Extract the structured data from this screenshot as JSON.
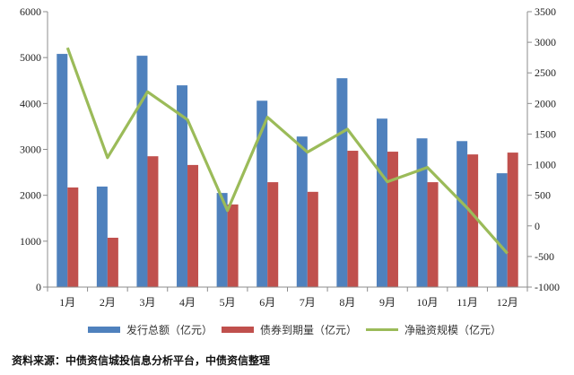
{
  "chart_data": {
    "type": "bar",
    "categories": [
      "1月",
      "2月",
      "3月",
      "4月",
      "5月",
      "6月",
      "7月",
      "8月",
      "9月",
      "10月",
      "11月",
      "12月"
    ],
    "series": [
      {
        "name": "发行总额（亿元）",
        "type": "bar",
        "axis": "left",
        "color": "#4F81BD",
        "values": [
          5080,
          2190,
          5040,
          4395,
          2050,
          4060,
          3280,
          4550,
          3670,
          3240,
          3180,
          2480
        ]
      },
      {
        "name": "债券到期量（亿元）",
        "type": "bar",
        "axis": "left",
        "color": "#C0504D",
        "values": [
          2170,
          1075,
          2850,
          2660,
          1800,
          2285,
          2075,
          2970,
          2950,
          2285,
          2890,
          2930
        ]
      },
      {
        "name": "净融资规模（亿元）",
        "type": "line",
        "axis": "right",
        "color": "#9BBB59",
        "values": [
          2910,
          1115,
          2190,
          1735,
          250,
          1775,
          1205,
          1580,
          720,
          955,
          290,
          -450
        ]
      }
    ],
    "left_axis": {
      "ylim": [
        0,
        6000
      ],
      "ticks": [
        0,
        1000,
        2000,
        3000,
        4000,
        5000,
        6000
      ]
    },
    "right_axis": {
      "ylim": [
        -1000,
        3500
      ],
      "ticks": [
        -1000,
        -500,
        0,
        500,
        1000,
        1500,
        2000,
        2500,
        3000,
        3500
      ]
    },
    "title": "",
    "xlabel": "",
    "ylabel": "",
    "grid": false,
    "legend_position": "bottom"
  },
  "legend": {
    "items": [
      {
        "label": "发行总额（亿元）",
        "color": "#4F81BD",
        "kind": "bar"
      },
      {
        "label": "债券到期量（亿元）",
        "color": "#C0504D",
        "kind": "bar"
      },
      {
        "label": "净融资规模（亿元）",
        "color": "#9BBB59",
        "kind": "line"
      }
    ]
  },
  "source_note": "资料来源：中债资信城投信息分析平台，中债资信整理"
}
